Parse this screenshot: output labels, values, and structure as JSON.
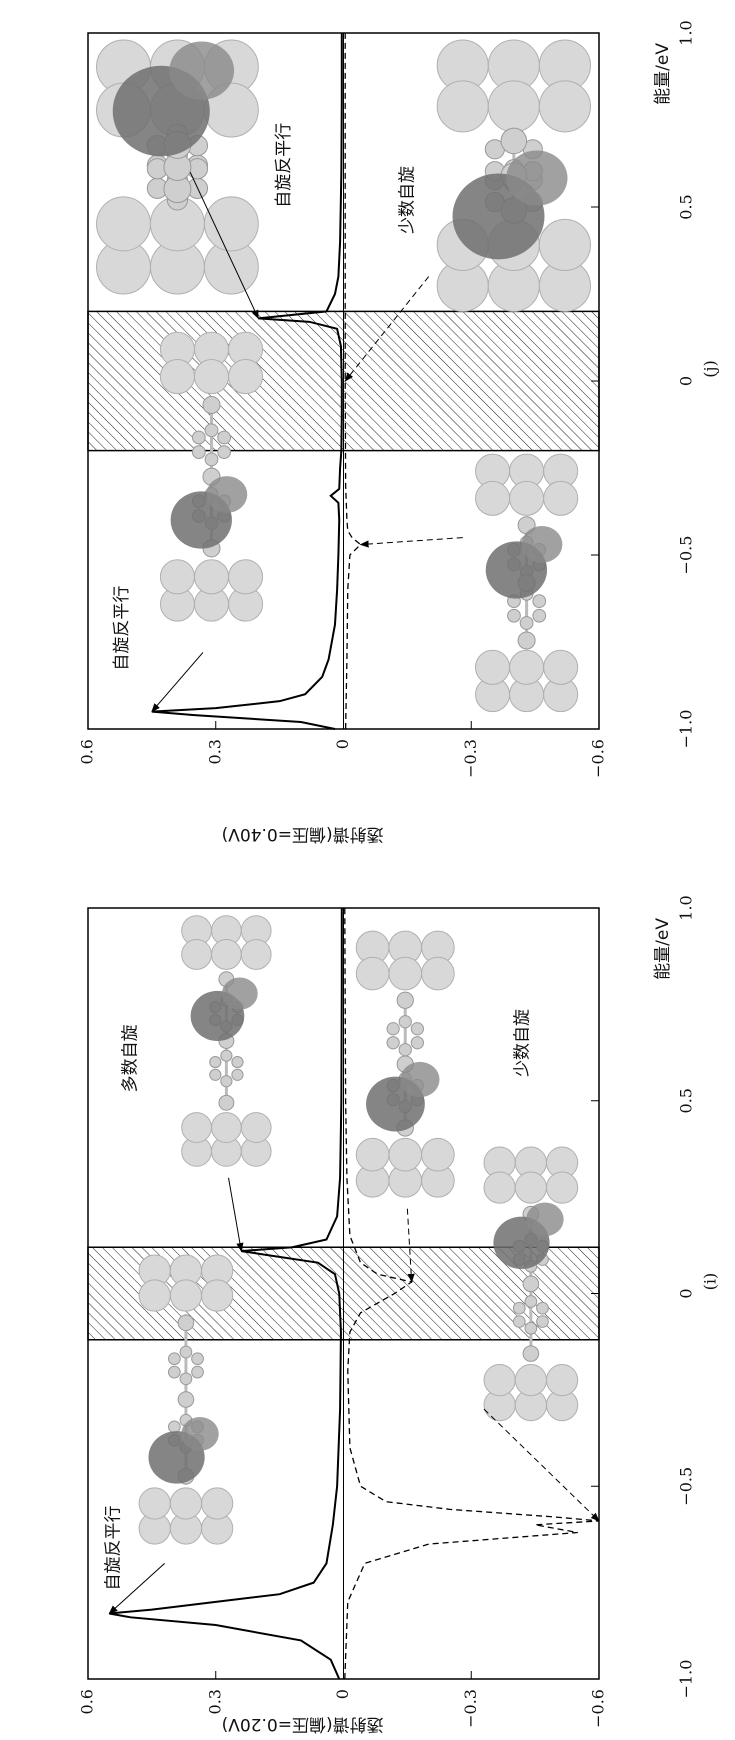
{
  "chart_data": [
    {
      "type": "line",
      "panel_label": "(j)",
      "xlabel": "能量/eV",
      "ylabel": "透射谱(偏压=0.40V)",
      "xlim": [
        -1,
        1
      ],
      "ylim": [
        -0.6,
        0.6
      ],
      "xticks": [
        {
          "value": -1,
          "label": "−1.0"
        },
        {
          "value": -0.5,
          "label": "−0.5"
        },
        0,
        0.5,
        {
          "value": 1,
          "label": "1.0"
        }
      ],
      "yticks": [
        {
          "value": -0.6,
          "label": "−0.6"
        },
        {
          "value": -0.3,
          "label": "−0.3"
        },
        0,
        0.3,
        0.6
      ],
      "hline": 0,
      "shaded_xrange": [
        -0.2,
        0.2
      ],
      "annotations": [
        "自旋反平行",
        "自旋反平行",
        "少数自旋"
      ],
      "series": [
        {
          "color": "#000000",
          "style": "solid",
          "x": [
            -1.0,
            -0.98,
            -0.96,
            -0.95,
            -0.94,
            -0.92,
            -0.9,
            -0.85,
            -0.8,
            -0.7,
            -0.6,
            -0.5,
            -0.4,
            -0.35,
            -0.33,
            -0.31,
            -0.25,
            -0.2,
            -0.1,
            0,
            0.1,
            0.15,
            0.17,
            0.18,
            0.2,
            0.25,
            0.3,
            0.4,
            0.6,
            0.8,
            1.0
          ],
          "values": [
            0.02,
            0.1,
            0.35,
            0.45,
            0.3,
            0.15,
            0.09,
            0.05,
            0.035,
            0.02,
            0.015,
            0.012,
            0.01,
            0.012,
            0.03,
            0.01,
            0.008,
            0.005,
            0.004,
            0.004,
            0.006,
            0.015,
            0.08,
            0.2,
            0.04,
            0.02,
            0.012,
            0.008,
            0.005,
            0.004,
            0.004
          ]
        },
        {
          "color": "#000000",
          "style": "dashed",
          "x": [
            -1.0,
            -0.8,
            -0.6,
            -0.5,
            -0.47,
            -0.45,
            -0.43,
            -0.4,
            -0.3,
            0,
            0.2,
            0.3,
            0.5,
            1.0
          ],
          "values": [
            -0.005,
            -0.008,
            -0.01,
            -0.015,
            -0.04,
            -0.02,
            -0.01,
            -0.008,
            -0.005,
            -0.004,
            -0.004,
            -0.004,
            -0.004,
            -0.004
          ]
        }
      ]
    },
    {
      "type": "line",
      "panel_label": "(i)",
      "xlabel": "能量/eV",
      "ylabel": "透射谱(偏压=0.20V)",
      "xlim": [
        -1,
        1
      ],
      "ylim": [
        -0.6,
        0.6
      ],
      "xticks": [
        {
          "value": -1,
          "label": "−1.0"
        },
        {
          "value": -0.5,
          "label": "−0.5"
        },
        0,
        0.5,
        {
          "value": 1,
          "label": "1.0"
        }
      ],
      "yticks": [
        {
          "value": -0.6,
          "label": "−0.6"
        },
        {
          "value": -0.3,
          "label": "−0.3"
        },
        0,
        0.3,
        0.6
      ],
      "hline": 0,
      "shaded_xrange": [
        -0.12,
        0.12
      ],
      "annotations": [
        "自旋反平行",
        "多数自旋",
        "少数自旋"
      ],
      "series": [
        {
          "color": "#000000",
          "style": "solid",
          "x": [
            -1.0,
            -0.95,
            -0.9,
            -0.86,
            -0.84,
            -0.83,
            -0.82,
            -0.8,
            -0.78,
            -0.75,
            -0.7,
            -0.6,
            -0.5,
            -0.3,
            -0.1,
            0,
            0.05,
            0.08,
            0.1,
            0.11,
            0.12,
            0.14,
            0.2,
            0.3,
            0.5,
            0.8,
            1.0
          ],
          "values": [
            0.01,
            0.03,
            0.1,
            0.3,
            0.5,
            0.55,
            0.45,
            0.3,
            0.15,
            0.07,
            0.04,
            0.025,
            0.015,
            0.008,
            0.006,
            0.01,
            0.02,
            0.06,
            0.18,
            0.24,
            0.12,
            0.04,
            0.015,
            0.008,
            0.005,
            0.004,
            0.004
          ]
        },
        {
          "color": "#000000",
          "style": "dashed",
          "x": [
            -1.0,
            -0.8,
            -0.7,
            -0.65,
            -0.62,
            -0.6,
            -0.59,
            -0.58,
            -0.56,
            -0.54,
            -0.5,
            -0.4,
            -0.2,
            -0.1,
            -0.05,
            0,
            0.03,
            0.05,
            0.08,
            0.15,
            0.3,
            0.5,
            1.0
          ],
          "values": [
            -0.003,
            -0.01,
            -0.05,
            -0.2,
            -0.55,
            -0.45,
            -0.6,
            -0.5,
            -0.25,
            -0.1,
            -0.04,
            -0.015,
            -0.01,
            -0.015,
            -0.04,
            -0.12,
            -0.16,
            -0.08,
            -0.04,
            -0.015,
            -0.008,
            -0.005,
            -0.003
          ]
        }
      ]
    }
  ]
}
